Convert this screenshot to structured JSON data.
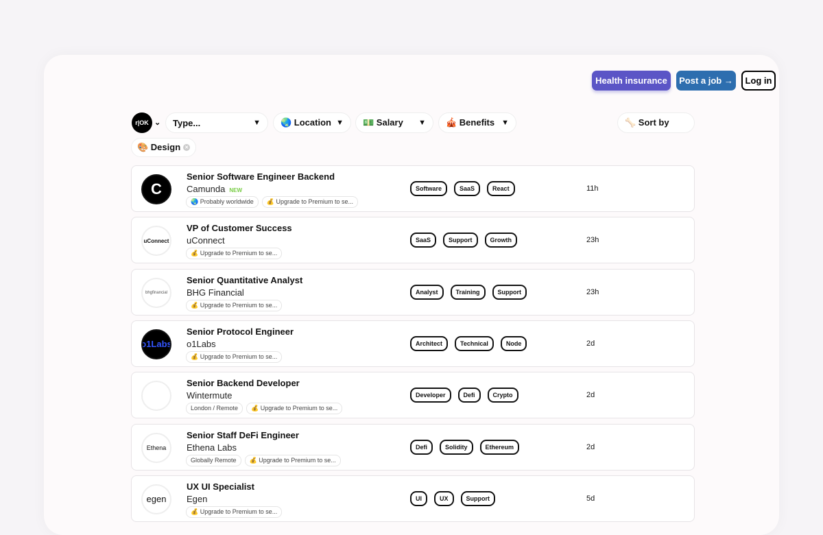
{
  "header": {
    "health_insurance": "Health insurance",
    "post_job": "Post a job →",
    "login": "Log in"
  },
  "filters": {
    "logo": "r|OK",
    "type": "Type...",
    "location": "🌏 Location",
    "salary": "💵 Salary",
    "benefits": "🎪 Benefits",
    "sort": "🦴 Sort by",
    "active_tag": "🎨 Design"
  },
  "jobs": [
    {
      "title": "Senior Software Engineer Backend",
      "company": "Camunda",
      "badge": "NEW",
      "logo": "C",
      "metas": [
        "🌏 Probably worldwide",
        "💰 Upgrade to Premium to se..."
      ],
      "tags": [
        "Software",
        "SaaS",
        "React"
      ],
      "time": "11h"
    },
    {
      "title": "VP of Customer Success",
      "company": "uConnect",
      "logo": "uConnect",
      "metas": [
        "💰 Upgrade to Premium to se..."
      ],
      "tags": [
        "SaaS",
        "Support",
        "Growth"
      ],
      "time": "23h"
    },
    {
      "title": "Senior Quantitative Analyst",
      "company": "BHG Financial",
      "logo": "bhgfinancial",
      "metas": [
        "💰 Upgrade to Premium to se..."
      ],
      "tags": [
        "Analyst",
        "Training",
        "Support"
      ],
      "time": "23h"
    },
    {
      "title": "Senior Protocol Engineer",
      "company": "o1Labs",
      "logo": "o1Labs",
      "metas": [
        "💰 Upgrade to Premium to se..."
      ],
      "tags": [
        "Architect",
        "Technical",
        "Node"
      ],
      "time": "2d"
    },
    {
      "title": "Senior Backend Developer",
      "company": "Wintermute",
      "logo": "",
      "metas": [
        "London / Remote",
        "💰 Upgrade to Premium to se..."
      ],
      "tags": [
        "Developer",
        "Defi",
        "Crypto"
      ],
      "time": "2d"
    },
    {
      "title": "Senior Staff DeFi Engineer",
      "company": "Ethena Labs",
      "logo": "Ethena",
      "metas": [
        "Globally Remote",
        "💰 Upgrade to Premium to se..."
      ],
      "tags": [
        "Defi",
        "Solidity",
        "Ethereum"
      ],
      "time": "2d"
    },
    {
      "title": "UX UI Specialist",
      "company": "Egen",
      "logo": "egen",
      "metas": [
        "💰 Upgrade to Premium to se..."
      ],
      "tags": [
        "UI",
        "UX",
        "Support"
      ],
      "time": "5d"
    }
  ]
}
